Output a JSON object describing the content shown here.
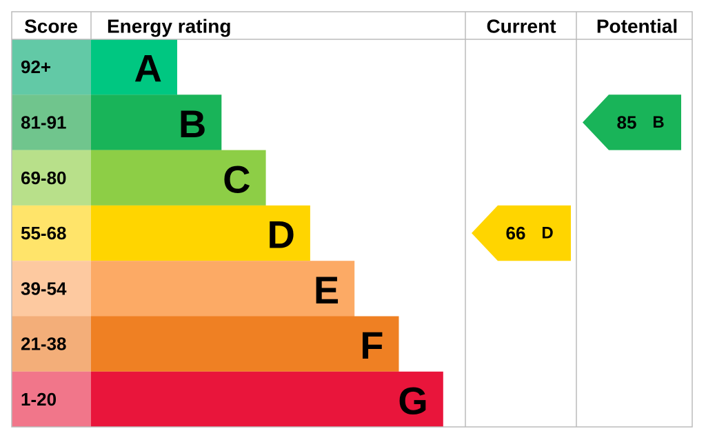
{
  "header": {
    "score": "Score",
    "rating": "Energy rating",
    "current": "Current",
    "potential": "Potential"
  },
  "rows": [
    {
      "score": "92+",
      "band": "A",
      "color": "#00c781",
      "score_color": "#62c9a6"
    },
    {
      "score": "81-91",
      "band": "B",
      "color": "#19b459",
      "score_color": "#70c58d"
    },
    {
      "score": "69-80",
      "band": "C",
      "color": "#8dce46",
      "score_color": "#b8e08a"
    },
    {
      "score": "55-68",
      "band": "D",
      "color": "#ffd500",
      "score_color": "#ffe46a"
    },
    {
      "score": "39-54",
      "band": "E",
      "color": "#fcaa65",
      "score_color": "#fdc9a0"
    },
    {
      "score": "21-38",
      "band": "F",
      "color": "#ef8023",
      "score_color": "#f3ae79"
    },
    {
      "score": "1-20",
      "band": "G",
      "color": "#e9153b",
      "score_color": "#f1768a"
    }
  ],
  "current": {
    "score": "66",
    "band": "D"
  },
  "potential": {
    "score": "85",
    "band": "B"
  }
}
